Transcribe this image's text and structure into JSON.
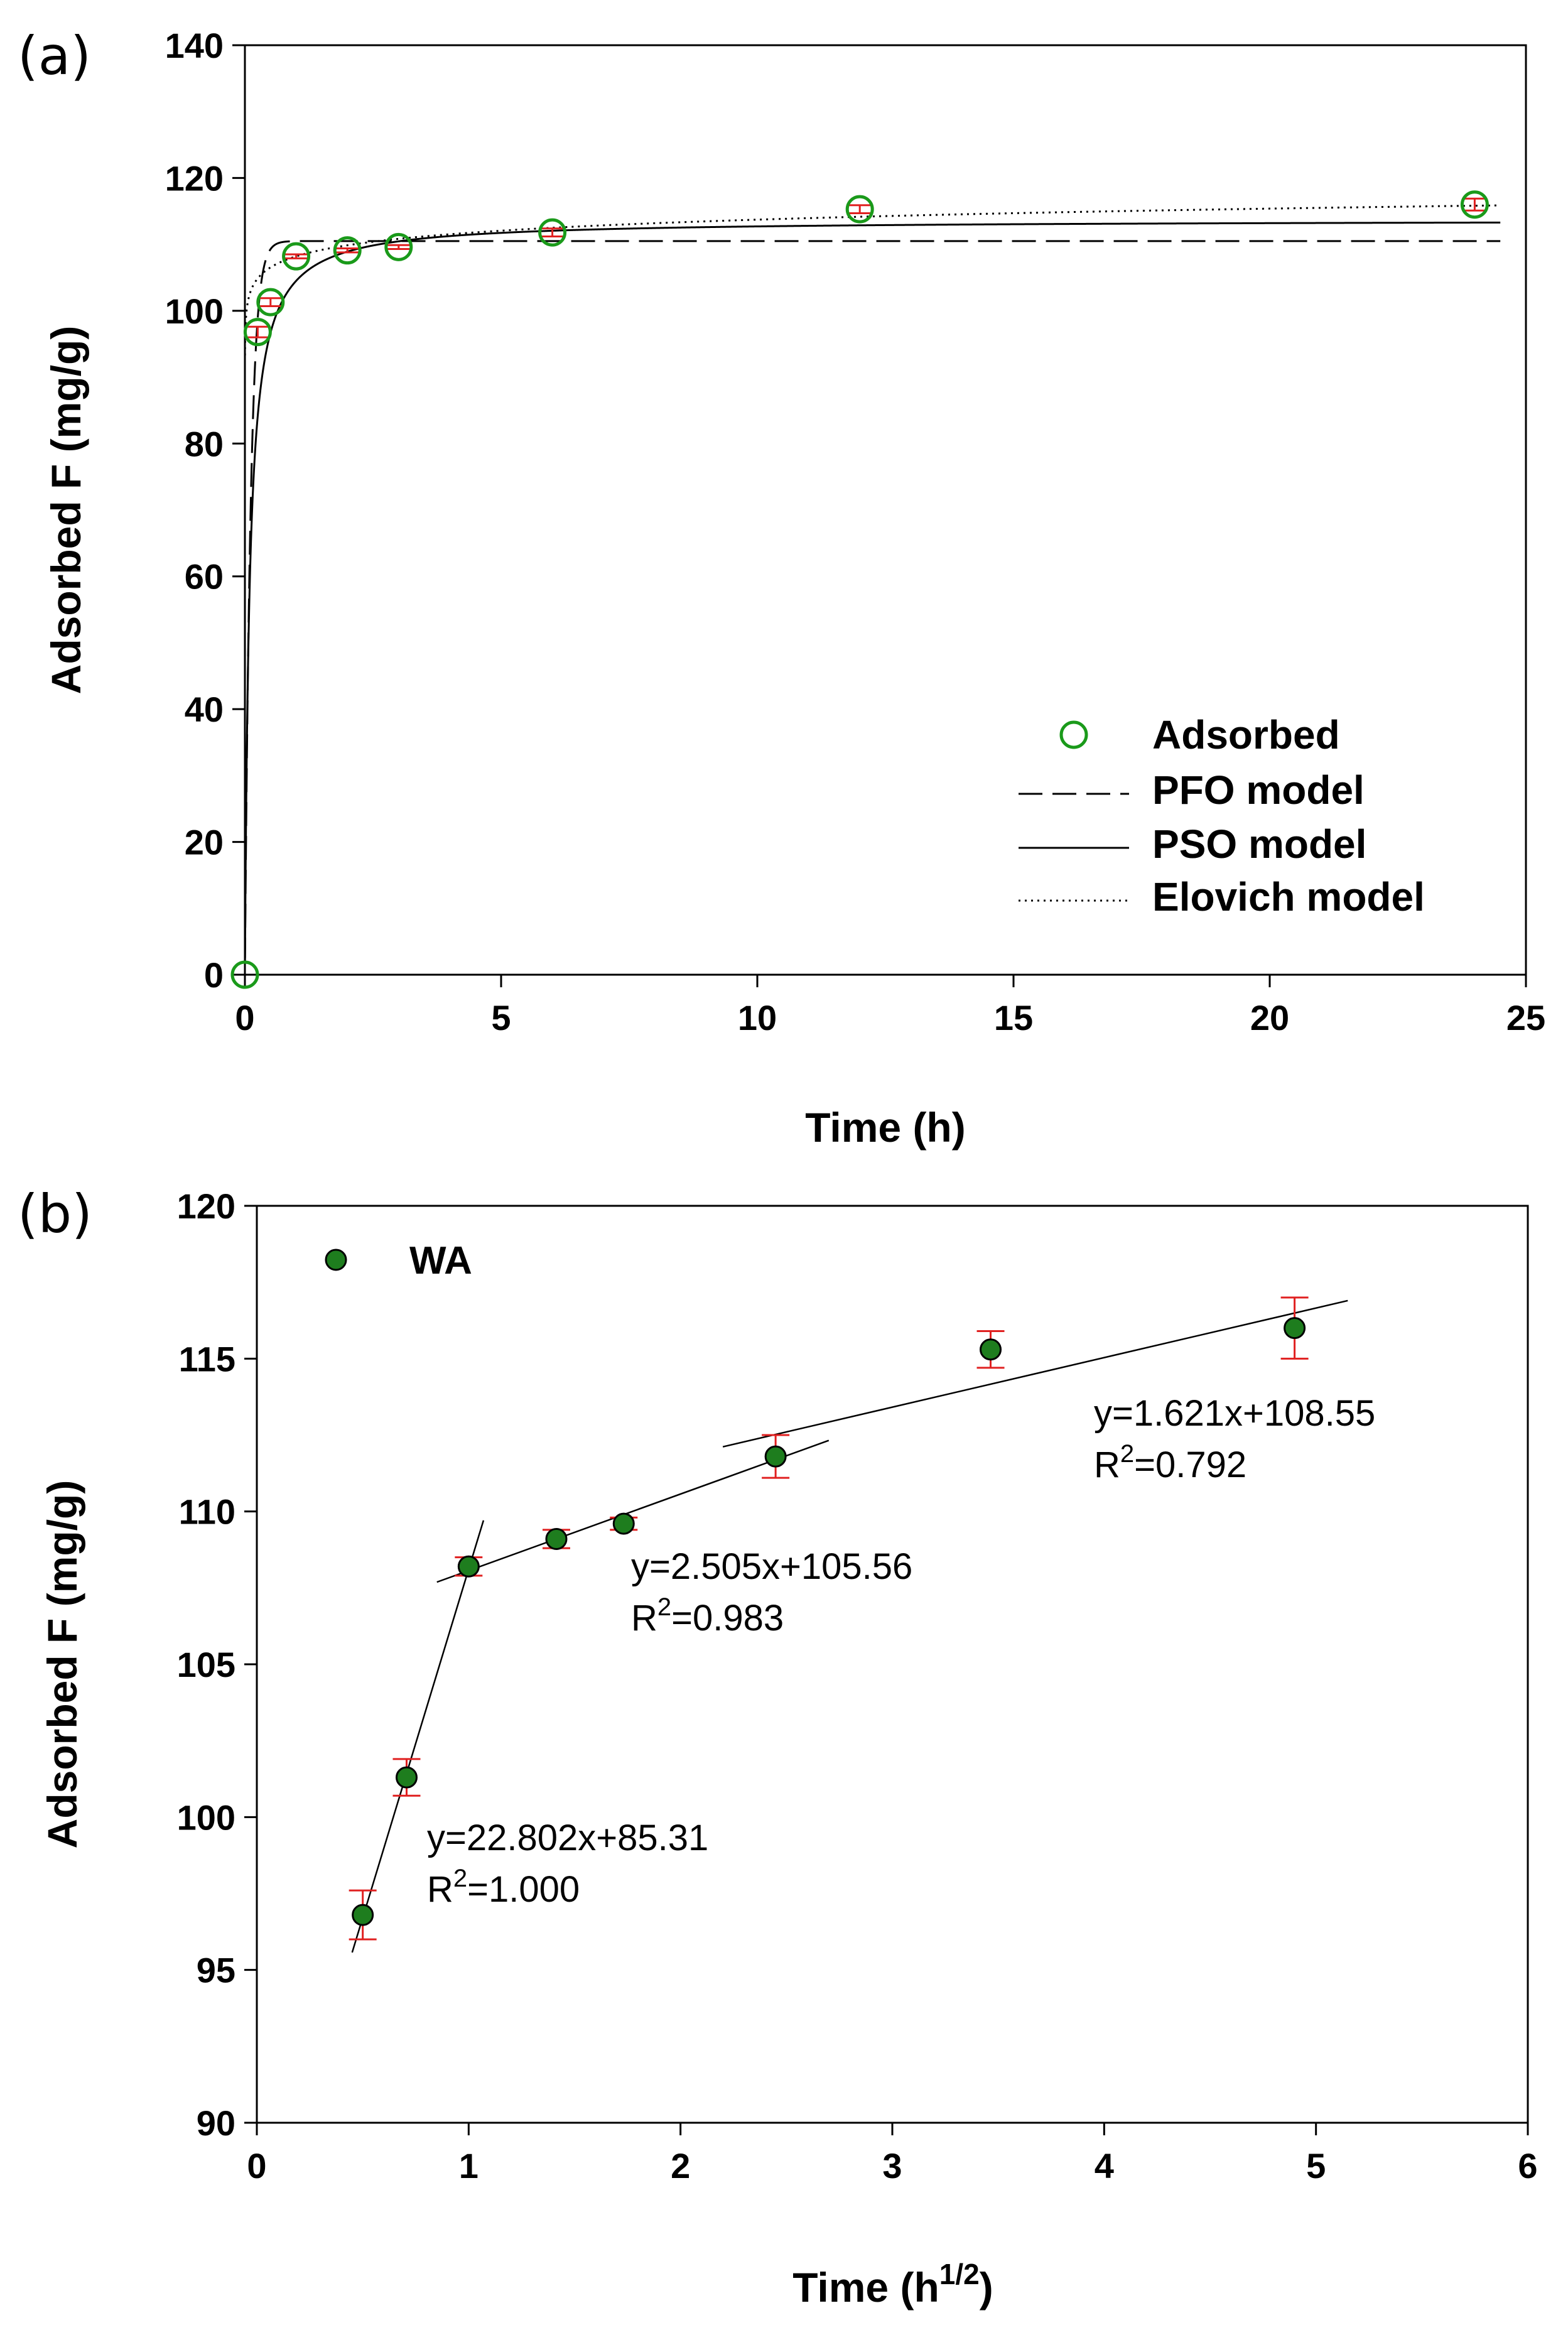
{
  "chart_data": [
    {
      "panel_label": "(a)",
      "type": "scatter",
      "title": "",
      "xlabel": "Time (h)",
      "ylabel": "Adsorbed F (mg/g)",
      "xlim": [
        0,
        25
      ],
      "ylim": [
        0,
        140
      ],
      "x_ticks": [
        0,
        5,
        10,
        15,
        20,
        25
      ],
      "y_ticks": [
        0,
        20,
        40,
        60,
        80,
        100,
        120,
        140
      ],
      "grid": false,
      "legend_position": "bottom-right",
      "series": [
        {
          "name": "Adsorbed",
          "kind": "points",
          "marker": "open-circle",
          "color": "#1a9a1a",
          "error_color": "#e02020",
          "x": [
            0,
            0.25,
            0.5,
            1,
            2,
            3,
            6,
            12,
            24
          ],
          "y": [
            0,
            96.8,
            101.3,
            108.2,
            109.1,
            109.6,
            111.8,
            115.3,
            116.0
          ],
          "err": [
            0,
            0.8,
            0.6,
            0.3,
            0.3,
            0.3,
            0.6,
            0.6,
            0.9
          ]
        },
        {
          "name": "PFO model",
          "kind": "line",
          "style": "dashed",
          "color": "#000000",
          "model": "pfo",
          "params": {
            "qe": 110.5,
            "k1": 9.0
          }
        },
        {
          "name": "PSO model",
          "kind": "line",
          "style": "solid",
          "color": "#000000",
          "model": "pso",
          "params": {
            "qe": 113.7,
            "k2": 0.1
          }
        },
        {
          "name": "Elovich model",
          "kind": "line",
          "style": "dotted",
          "color": "#000000",
          "model": "elovich",
          "params": {
            "a": 108.2,
            "b": 2.4
          }
        }
      ]
    },
    {
      "panel_label": "(b)",
      "type": "scatter",
      "title": "",
      "xlabel": "Time (h",
      "xlabel_sup": "1/2",
      "xlabel_end": ")",
      "ylabel": "Adsorbed F (mg/g)",
      "xlim": [
        0,
        6
      ],
      "ylim": [
        90,
        120
      ],
      "x_ticks": [
        0,
        1,
        2,
        3,
        4,
        5,
        6
      ],
      "y_ticks": [
        90,
        95,
        100,
        105,
        110,
        115,
        120
      ],
      "grid": false,
      "legend_position": "top-left",
      "series": [
        {
          "name": "WA",
          "kind": "points",
          "marker": "filled-circle",
          "color": "#1e7d1e",
          "error_color": "#e02020",
          "x": [
            0.5,
            0.707,
            1.0,
            1.414,
            1.732,
            2.449,
            3.464,
            4.899
          ],
          "y": [
            96.8,
            101.3,
            108.2,
            109.1,
            109.6,
            111.8,
            115.3,
            116.0
          ],
          "err": [
            0.8,
            0.6,
            0.3,
            0.3,
            0.2,
            0.7,
            0.6,
            1.0
          ]
        }
      ],
      "fits": [
        {
          "slope": 22.802,
          "intercept": 85.31,
          "x_range": [
            0.45,
            1.07
          ],
          "equation": "y=22.802x+85.31",
          "r2_value": "=1.000"
        },
        {
          "slope": 2.505,
          "intercept": 105.56,
          "x_range": [
            0.85,
            2.7
          ],
          "equation": "y=2.505x+105.56",
          "r2_value": "=0.983"
        },
        {
          "slope": 1.621,
          "intercept": 108.55,
          "x_range": [
            2.2,
            5.15
          ],
          "equation": "y=1.621x+108.55",
          "r2_value": "=0.792"
        }
      ],
      "r2_prefix": "R",
      "r2_sup": "2"
    }
  ]
}
